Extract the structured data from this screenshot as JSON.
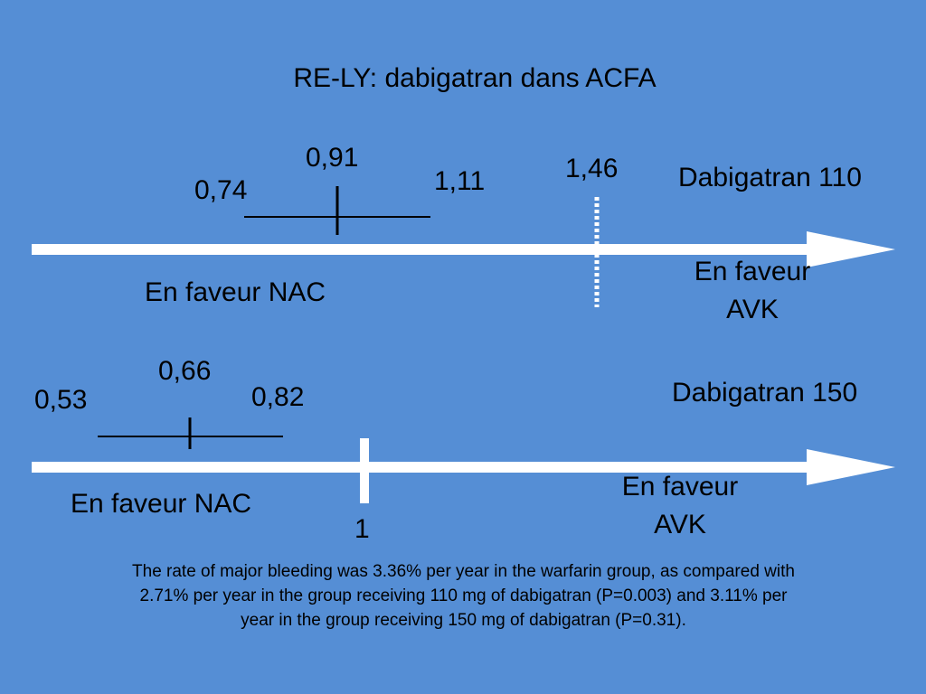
{
  "title": "RE-LY: dabigatran dans ACFA",
  "panel_110": {
    "name": "Dabigatran 110",
    "ci_low": "0,74",
    "point": "0,91",
    "ci_high": "1,11",
    "margin": "1,46",
    "left_label": "En faveur NAC",
    "right_label_line1": "En faveur",
    "right_label_line2": "AVK"
  },
  "panel_150": {
    "name": "Dabigatran 150",
    "ci_low": "0,53",
    "point": "0,66",
    "ci_high": "0,82",
    "reference": "1",
    "left_label": "En faveur NAC",
    "right_label_line1": "En faveur",
    "right_label_line2": "AVK"
  },
  "caption": "The rate of major bleeding was 3.36% per year in the warfarin group, as compared with 2.71% per year in the group receiving 110 mg of dabigatran (P=0.003) and 3.11% per year in the group receiving 150 mg of dabigatran (P=0.31).",
  "colors": {
    "background": "#558ed5",
    "axis": "#ffffff",
    "marks": "#000000"
  }
}
